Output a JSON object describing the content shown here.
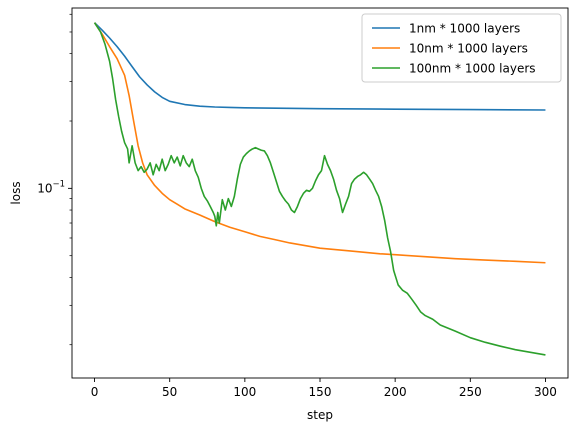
{
  "chart_data": {
    "type": "line",
    "title": "",
    "xlabel": "step",
    "ylabel": "loss",
    "xlim": [
      -15,
      315
    ],
    "ylim": [
      0.0142,
      0.64
    ],
    "yscale": "log",
    "grid": false,
    "legend_position": "top-right",
    "xticks": [
      0,
      50,
      100,
      150,
      200,
      250,
      300
    ],
    "yticks": [
      {
        "value": 0.1,
        "base": "10",
        "exp": "−1"
      }
    ],
    "series": [
      {
        "name": "1nm * 1000 layers",
        "color": "#1f77b4",
        "points": [
          [
            0,
            0.55
          ],
          [
            5,
            0.51
          ],
          [
            10,
            0.47
          ],
          [
            15,
            0.43
          ],
          [
            20,
            0.39
          ],
          [
            25,
            0.35
          ],
          [
            30,
            0.315
          ],
          [
            35,
            0.29
          ],
          [
            40,
            0.27
          ],
          [
            45,
            0.255
          ],
          [
            50,
            0.245
          ],
          [
            60,
            0.237
          ],
          [
            70,
            0.233
          ],
          [
            80,
            0.231
          ],
          [
            90,
            0.23
          ],
          [
            100,
            0.229
          ],
          [
            150,
            0.227
          ],
          [
            200,
            0.226
          ],
          [
            250,
            0.225
          ],
          [
            300,
            0.224
          ]
        ]
      },
      {
        "name": "10nm * 1000 layers",
        "color": "#ff7f0e",
        "points": [
          [
            0,
            0.55
          ],
          [
            5,
            0.49
          ],
          [
            10,
            0.43
          ],
          [
            15,
            0.38
          ],
          [
            20,
            0.32
          ],
          [
            23,
            0.26
          ],
          [
            26,
            0.2
          ],
          [
            29,
            0.155
          ],
          [
            32,
            0.13
          ],
          [
            35,
            0.115
          ],
          [
            40,
            0.103
          ],
          [
            45,
            0.095
          ],
          [
            50,
            0.089
          ],
          [
            55,
            0.085
          ],
          [
            60,
            0.081
          ],
          [
            70,
            0.076
          ],
          [
            80,
            0.071
          ],
          [
            90,
            0.067
          ],
          [
            100,
            0.064
          ],
          [
            110,
            0.061
          ],
          [
            120,
            0.059
          ],
          [
            130,
            0.057
          ],
          [
            140,
            0.0555
          ],
          [
            150,
            0.054
          ],
          [
            170,
            0.0525
          ],
          [
            190,
            0.051
          ],
          [
            200,
            0.0505
          ],
          [
            220,
            0.0495
          ],
          [
            240,
            0.0485
          ],
          [
            260,
            0.0478
          ],
          [
            280,
            0.0472
          ],
          [
            300,
            0.0465
          ]
        ]
      },
      {
        "name": "100nm * 1000 layers",
        "color": "#2ca02c",
        "points": [
          [
            0,
            0.55
          ],
          [
            4,
            0.5
          ],
          [
            7,
            0.44
          ],
          [
            10,
            0.37
          ],
          [
            12,
            0.31
          ],
          [
            14,
            0.25
          ],
          [
            16,
            0.21
          ],
          [
            18,
            0.18
          ],
          [
            20,
            0.16
          ],
          [
            22,
            0.15
          ],
          [
            23,
            0.13
          ],
          [
            25,
            0.155
          ],
          [
            27,
            0.13
          ],
          [
            29,
            0.12
          ],
          [
            31,
            0.125
          ],
          [
            33,
            0.118
          ],
          [
            35,
            0.122
          ],
          [
            37,
            0.13
          ],
          [
            39,
            0.115
          ],
          [
            41,
            0.128
          ],
          [
            43,
            0.12
          ],
          [
            45,
            0.135
          ],
          [
            47,
            0.12
          ],
          [
            49,
            0.128
          ],
          [
            51,
            0.14
          ],
          [
            53,
            0.13
          ],
          [
            55,
            0.138
          ],
          [
            57,
            0.126
          ],
          [
            59,
            0.14
          ],
          [
            61,
            0.13
          ],
          [
            63,
            0.125
          ],
          [
            65,
            0.135
          ],
          [
            67,
            0.12
          ],
          [
            69,
            0.112
          ],
          [
            71,
            0.1
          ],
          [
            73,
            0.092
          ],
          [
            75,
            0.088
          ],
          [
            77,
            0.083
          ],
          [
            79,
            0.078
          ],
          [
            80,
            0.075
          ],
          [
            81,
            0.068
          ],
          [
            82,
            0.078
          ],
          [
            83,
            0.07
          ],
          [
            85,
            0.089
          ],
          [
            87,
            0.08
          ],
          [
            89,
            0.09
          ],
          [
            91,
            0.083
          ],
          [
            93,
            0.092
          ],
          [
            95,
            0.11
          ],
          [
            97,
            0.128
          ],
          [
            99,
            0.138
          ],
          [
            101,
            0.143
          ],
          [
            103,
            0.147
          ],
          [
            105,
            0.15
          ],
          [
            107,
            0.152
          ],
          [
            109,
            0.15
          ],
          [
            111,
            0.148
          ],
          [
            113,
            0.147
          ],
          [
            115,
            0.14
          ],
          [
            117,
            0.13
          ],
          [
            119,
            0.118
          ],
          [
            121,
            0.107
          ],
          [
            123,
            0.097
          ],
          [
            125,
            0.092
          ],
          [
            127,
            0.088
          ],
          [
            129,
            0.085
          ],
          [
            131,
            0.08
          ],
          [
            133,
            0.078
          ],
          [
            135,
            0.083
          ],
          [
            137,
            0.09
          ],
          [
            139,
            0.095
          ],
          [
            141,
            0.098
          ],
          [
            143,
            0.097
          ],
          [
            145,
            0.1
          ],
          [
            147,
            0.108
          ],
          [
            149,
            0.115
          ],
          [
            151,
            0.12
          ],
          [
            153,
            0.14
          ],
          [
            155,
            0.128
          ],
          [
            157,
            0.12
          ],
          [
            159,
            0.11
          ],
          [
            161,
            0.098
          ],
          [
            163,
            0.09
          ],
          [
            165,
            0.078
          ],
          [
            167,
            0.085
          ],
          [
            169,
            0.092
          ],
          [
            171,
            0.105
          ],
          [
            173,
            0.11
          ],
          [
            175,
            0.113
          ],
          [
            177,
            0.115
          ],
          [
            179,
            0.118
          ],
          [
            181,
            0.115
          ],
          [
            183,
            0.11
          ],
          [
            185,
            0.105
          ],
          [
            187,
            0.098
          ],
          [
            189,
            0.092
          ],
          [
            191,
            0.083
          ],
          [
            193,
            0.072
          ],
          [
            195,
            0.06
          ],
          [
            197,
            0.052
          ],
          [
            199,
            0.043
          ],
          [
            202,
            0.037
          ],
          [
            205,
            0.035
          ],
          [
            208,
            0.034
          ],
          [
            211,
            0.032
          ],
          [
            214,
            0.03
          ],
          [
            217,
            0.028
          ],
          [
            220,
            0.027
          ],
          [
            225,
            0.026
          ],
          [
            230,
            0.0245
          ],
          [
            240,
            0.023
          ],
          [
            250,
            0.0215
          ],
          [
            260,
            0.0205
          ],
          [
            270,
            0.0197
          ],
          [
            280,
            0.019
          ],
          [
            290,
            0.0185
          ],
          [
            300,
            0.018
          ]
        ]
      }
    ]
  }
}
